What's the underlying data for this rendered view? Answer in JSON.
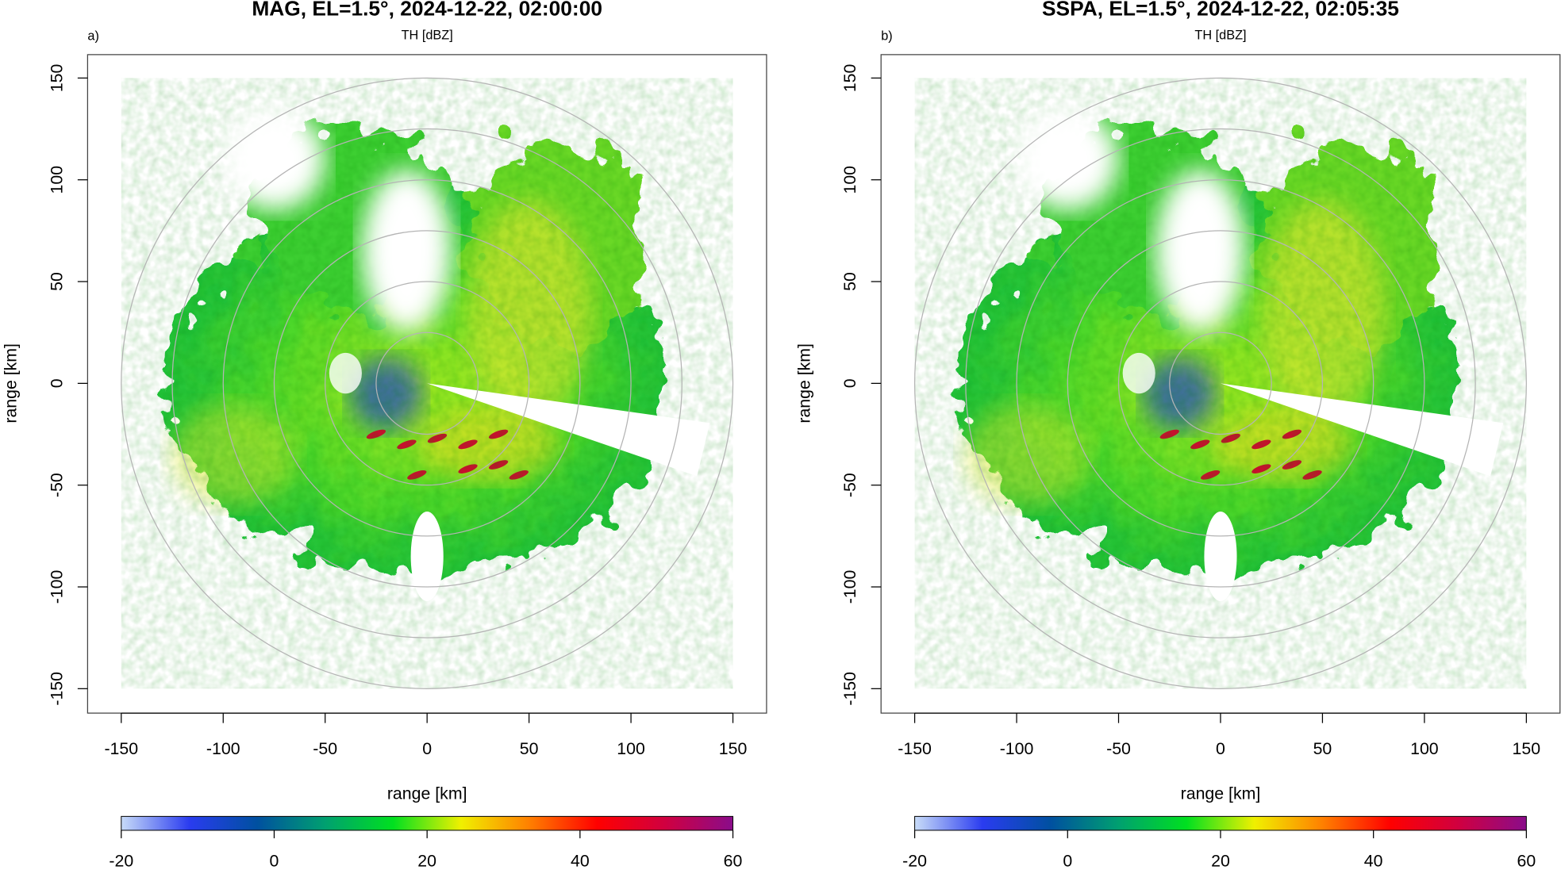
{
  "chart_data": [
    {
      "type": "radar",
      "panel_label": "a)",
      "title": "MAG, EL=1.5°, 2024-12-22, 02:00:00",
      "subtitle": "TH [dBZ]",
      "xlabel": "range [km]",
      "ylabel": "range [km]",
      "xlim": [
        -166.5,
        166.5
      ],
      "ylim": [
        -162,
        161.5
      ],
      "xticks": [
        -150,
        -100,
        -50,
        0,
        50,
        100,
        150
      ],
      "yticks": [
        -150,
        -100,
        -50,
        0,
        50,
        100,
        150
      ],
      "colorbar": {
        "lim": [
          -20,
          60
        ],
        "ticks": [
          -20,
          0,
          20,
          40,
          60
        ],
        "colors": [
          "#c8dcf8",
          "#2a3cf0",
          "#0050a0",
          "#00a070",
          "#00e020",
          "#f0f000",
          "#ff8000",
          "#ff0000",
          "#d00040",
          "#8a0c8a"
        ]
      }
    },
    {
      "type": "radar",
      "panel_label": "b)",
      "title": "SSPA, EL=1.5°, 2024-12-22, 02:05:35",
      "subtitle": "TH [dBZ]",
      "xlabel": "range [km]",
      "ylabel": "range [km]",
      "xlim": [
        -166.5,
        166.5
      ],
      "ylim": [
        -162,
        161.5
      ],
      "xticks": [
        -150,
        -100,
        -50,
        0,
        50,
        100,
        150
      ],
      "yticks": [
        -150,
        -100,
        -50,
        0,
        50,
        100,
        150
      ],
      "colorbar": {
        "lim": [
          -20,
          60
        ],
        "ticks": [
          -20,
          0,
          20,
          40,
          60
        ],
        "colors": [
          "#c8dcf8",
          "#2a3cf0",
          "#0050a0",
          "#00a070",
          "#00e020",
          "#f0f000",
          "#ff8000",
          "#ff0000",
          "#d00040",
          "#8a0c8a"
        ]
      }
    }
  ]
}
